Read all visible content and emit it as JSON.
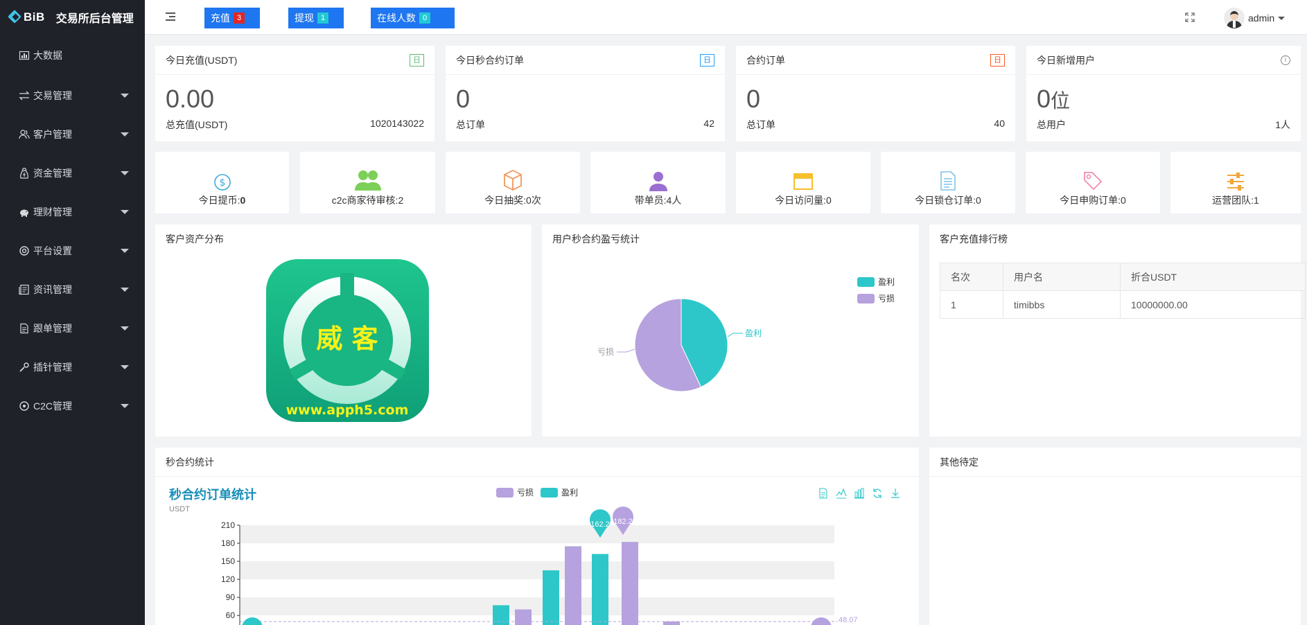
{
  "app": {
    "brand": "BiB",
    "title": "交易所后台管理"
  },
  "sidebar": {
    "items": [
      {
        "label": "大数据",
        "icon": "bar-chart-icon",
        "has_caret": false
      },
      {
        "label": "交易管理",
        "icon": "exchange-icon",
        "has_caret": true
      },
      {
        "label": "客户管理",
        "icon": "users-icon",
        "has_caret": true
      },
      {
        "label": "资金管理",
        "icon": "wallet-icon",
        "has_caret": true
      },
      {
        "label": "理财管理",
        "icon": "piggy-bank-icon",
        "has_caret": true
      },
      {
        "label": "平台设置",
        "icon": "settings-icon",
        "has_caret": true
      },
      {
        "label": "资讯管理",
        "icon": "news-icon",
        "has_caret": true
      },
      {
        "label": "跟单管理",
        "icon": "document-icon",
        "has_caret": true
      },
      {
        "label": "插针管理",
        "icon": "wrench-icon",
        "has_caret": true
      },
      {
        "label": "C2C管理",
        "icon": "target-icon",
        "has_caret": true
      }
    ]
  },
  "header": {
    "buttons": [
      {
        "label": "充值",
        "count": "3",
        "badge_color": "#e02828"
      },
      {
        "label": "提现",
        "count": "1",
        "badge_color": "#22c9d4"
      },
      {
        "label": "在线人数",
        "count": "0",
        "badge_color": "#22c9d4"
      }
    ],
    "user": "admin"
  },
  "stats": [
    {
      "title": "今日充值(USDT)",
      "tag": "日",
      "value": "0.00",
      "foot_label": "总充值(USDT)",
      "foot_value": "1020143022"
    },
    {
      "title": "今日秒合约订单",
      "tag": "日",
      "value": "0",
      "foot_label": "总订单",
      "foot_value": "42"
    },
    {
      "title": "合约订单",
      "tag": "日",
      "value": "0",
      "foot_label": "总订单",
      "foot_value": "40"
    },
    {
      "title": "今日新增用户",
      "tag": "i",
      "value": "0",
      "value_unit": "位",
      "foot_label": "总用户",
      "foot_value": "1人"
    }
  ],
  "quick": [
    {
      "label": "今日提币:",
      "value": "0",
      "icon": "dollar-circle-icon",
      "color": "#3fa9d8"
    },
    {
      "label": "c2c商家待审核:2",
      "icon": "users-group-icon",
      "color": "#7ccf57"
    },
    {
      "label": "今日抽奖:0次",
      "icon": "box-icon",
      "color": "#f0955a"
    },
    {
      "label": "带单员:4人",
      "icon": "user-icon",
      "color": "#9b6fd1"
    },
    {
      "label": "今日访问量:0",
      "icon": "browser-window-icon",
      "color": "#f5c02c"
    },
    {
      "label": "今日锁仓订单:0",
      "icon": "file-list-icon",
      "color": "#7ec3e8"
    },
    {
      "label": "今日申购订单:0",
      "icon": "tag-icon",
      "color": "#ef8cb3"
    },
    {
      "label": "运营团队:1",
      "icon": "sliders-icon",
      "color": "#f2a73b"
    }
  ],
  "asset_panel": {
    "title": "客户资产分布",
    "logo_text": "威 客",
    "logo_url": "www.apph5.com"
  },
  "pie_panel": {
    "title": "用户秒合约盈亏统计",
    "legend": [
      {
        "name": "盈利",
        "color": "#2ec7c9"
      },
      {
        "name": "亏损",
        "color": "#b6a2de"
      }
    ],
    "label_profit": "盈利",
    "label_loss": "亏损"
  },
  "rank_panel": {
    "title": "客户充值排行榜",
    "columns": [
      "名次",
      "用户名",
      "折合USDT"
    ],
    "rows": [
      [
        "1",
        "timibbs",
        "10000000.00"
      ]
    ]
  },
  "bar_panel": {
    "title": "秒合约统计",
    "chart_title": "秒合约订单统计",
    "unit": "USDT",
    "mark_point_max_profit": "162.2",
    "mark_point_max_loss": "182.2",
    "mark_line_value": "48.07"
  },
  "other_panel": {
    "title": "其他待定"
  },
  "chart_data": [
    {
      "type": "pie",
      "title": "用户秒合约盈亏统计",
      "slices": [
        {
          "name": "盈利",
          "value": 43,
          "color": "#2ec7c9"
        },
        {
          "name": "亏损",
          "value": 57,
          "color": "#b6a2de"
        }
      ],
      "legend": "top-right"
    },
    {
      "type": "bar",
      "title": "秒合约订单统计",
      "ylabel": "USDT",
      "ylim": [
        0,
        210
      ],
      "yticks": [
        60,
        90,
        120,
        150,
        180,
        210
      ],
      "series": [
        {
          "name": "亏损",
          "color": "#b6a2de",
          "values": [
            0,
            0,
            0,
            0,
            0,
            0,
            0,
            0,
            0,
            0,
            70,
            175,
            0,
            182.2,
            0,
            50,
            0,
            0,
            0,
            0,
            0
          ]
        },
        {
          "name": "盈利",
          "color": "#2ec7c9",
          "values": [
            0,
            0,
            0,
            0,
            0,
            0,
            0,
            0,
            0,
            0,
            77,
            135,
            0,
            162.2,
            0,
            0,
            0,
            0,
            0,
            0,
            0
          ]
        }
      ],
      "legend": "top-center"
    }
  ]
}
